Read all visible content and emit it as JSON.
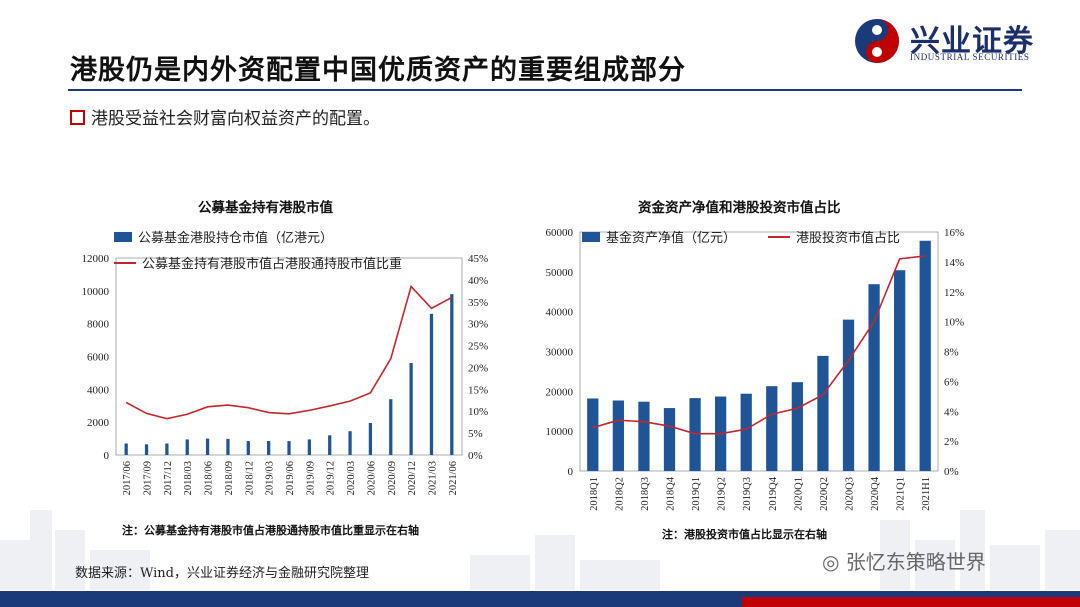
{
  "page": {
    "title": "港股仍是内外资配置中国优质资产的重要组成部分",
    "bullet": "港股受益社会财富向权益资产的配置。",
    "source": "数据来源：Wind，兴业证券经济与金融研究院整理",
    "watermark": "张忆东策略世界"
  },
  "brand": {
    "name": "兴业证券",
    "subtitle": "INDUSTRIAL SECURITIES",
    "colors": {
      "navy": "#1b3a7a",
      "red": "#c00000",
      "bar": "#1f5597",
      "line": "#c0282d"
    }
  },
  "chart1_note": "注：公募基金持有港股市值占港股通持股市值比重显示在右轴",
  "chart2_note": "注：港股投资市值占比显示在右轴",
  "chart_data": [
    {
      "type": "bar",
      "title": "公募基金持有港股市值",
      "categories": [
        "2017/06",
        "2017/09",
        "2017/12",
        "2018/03",
        "2018/06",
        "2018/09",
        "2018/12",
        "2019/03",
        "2019/06",
        "2019/09",
        "2019/12",
        "2020/03",
        "2020/06",
        "2020/09",
        "2020/12",
        "2021/03",
        "2021/06"
      ],
      "series": [
        {
          "name": "公募基金港股持仓市值（亿港元）",
          "axis": "left",
          "type": "bar",
          "values": [
            700,
            650,
            700,
            950,
            1000,
            980,
            850,
            850,
            850,
            950,
            1200,
            1450,
            1950,
            3400,
            5600,
            8600,
            9800
          ]
        },
        {
          "name": "公募基金持有港股市值占港股通持股市值比重",
          "axis": "right",
          "type": "line",
          "values": [
            12.0,
            9.5,
            8.3,
            9.3,
            11.0,
            11.4,
            10.8,
            9.7,
            9.4,
            10.2,
            11.2,
            12.3,
            14.2,
            22.0,
            38.5,
            33.5,
            36.0
          ]
        }
      ],
      "y_left": {
        "min": 0,
        "max": 12000,
        "ticks": [
          0,
          2000,
          4000,
          6000,
          8000,
          10000,
          12000
        ],
        "labels": [
          "0",
          "2000",
          "4000",
          "6000",
          "8000",
          "10000",
          "12000"
        ]
      },
      "y_right": {
        "min": 0,
        "max": 45,
        "ticks": [
          0,
          5,
          10,
          15,
          20,
          25,
          30,
          35,
          40,
          45
        ],
        "labels": [
          "0%",
          "5%",
          "10%",
          "15%",
          "20%",
          "25%",
          "30%",
          "35%",
          "40%",
          "45%"
        ]
      }
    },
    {
      "type": "bar",
      "title": "资金资产净值和港股投资市值占比",
      "categories": [
        "2018Q1",
        "2018Q2",
        "2018Q3",
        "2018Q4",
        "2019Q1",
        "2019Q2",
        "2019Q3",
        "2019Q4",
        "2020Q1",
        "2020Q2",
        "2020Q3",
        "2020Q4",
        "2021Q1",
        "2021H1"
      ],
      "series": [
        {
          "name": "基金资产净值（亿元）",
          "axis": "left",
          "type": "bar",
          "values": [
            18200,
            17700,
            17400,
            15800,
            18300,
            18700,
            19400,
            21300,
            22300,
            28900,
            38000,
            46900,
            50400,
            57800
          ]
        },
        {
          "name": "港股投资市值占比",
          "axis": "right",
          "type": "line",
          "values": [
            2.9,
            3.4,
            3.3,
            3.0,
            2.5,
            2.5,
            2.8,
            3.8,
            4.2,
            5.1,
            7.4,
            10.0,
            14.2,
            14.4
          ]
        }
      ],
      "y_left": {
        "min": 0,
        "max": 60000,
        "ticks": [
          0,
          10000,
          20000,
          30000,
          40000,
          50000,
          60000
        ],
        "labels": [
          "0",
          "10000",
          "20000",
          "30000",
          "40000",
          "50000",
          "60000"
        ]
      },
      "y_right": {
        "min": 0,
        "max": 16,
        "ticks": [
          0,
          2,
          4,
          6,
          8,
          10,
          12,
          14,
          16
        ],
        "labels": [
          "0%",
          "2%",
          "4%",
          "6%",
          "8%",
          "10%",
          "12%",
          "14%",
          "16%"
        ]
      }
    }
  ]
}
